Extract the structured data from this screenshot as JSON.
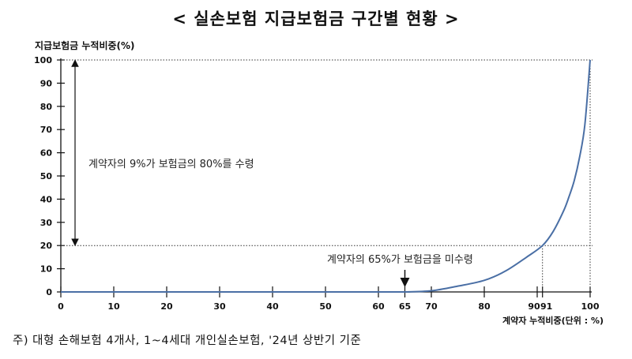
{
  "chart_data": {
    "type": "line",
    "title": "< 실손보험 지급보험금 구간별 현황 >",
    "ylabel": "지급보험금 누적비중(%)",
    "xlabel": "계약자 누적비중(단위 : %)",
    "xlim": [
      0,
      100
    ],
    "ylim": [
      0,
      100
    ],
    "x_ticks": [
      0,
      10,
      20,
      30,
      40,
      50,
      60,
      65,
      70,
      80,
      90,
      91,
      100
    ],
    "y_ticks": [
      0,
      10,
      20,
      30,
      40,
      50,
      60,
      70,
      80,
      90,
      100
    ],
    "grid": false,
    "series": [
      {
        "color": "#4a6fa5",
        "x": [
          0,
          60,
          65,
          70,
          75,
          80,
          84,
          88,
          91,
          93,
          95,
          96,
          97,
          98,
          99,
          100
        ],
        "y": [
          0,
          0,
          0,
          0.5,
          2.5,
          5,
          9,
          15,
          20,
          26,
          35,
          41,
          48,
          58,
          72,
          100
        ]
      }
    ],
    "annotations": [
      {
        "text": "계약자의 9%가 보험금의 80%를 수령",
        "from_y": 20,
        "to_y": 100
      },
      {
        "text": "계약자의 65%가 보험금을 미수령",
        "at_x": 65
      }
    ],
    "reference_lines": {
      "y_dotted": [
        20,
        100
      ],
      "x_dotted": [
        91,
        100
      ]
    }
  },
  "footnote": "주) 대형 손해보험 4개사, 1~4세대 개인실손보험, '24년 상반기 기준"
}
